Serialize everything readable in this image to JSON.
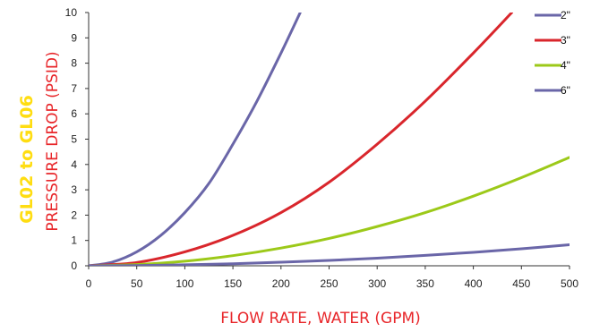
{
  "colors": {
    "series_2in": "#6a66a8",
    "series_3in": "#d9262c",
    "series_4in": "#9cc919",
    "series_6in": "#6a66a8",
    "axis_title": "#e8262a",
    "side_title": "#ffdd11"
  },
  "labels": {
    "side_title": "GL02 to GL06",
    "y_title": "PRESSURE DROP (PSID)",
    "x_title": "FLOW RATE, WATER (GPM)"
  },
  "chart_data": {
    "type": "line",
    "xlabel": "FLOW RATE, WATER (GPM)",
    "ylabel": "PRESSURE DROP (PSID)",
    "xlim": [
      0,
      500
    ],
    "ylim": [
      0,
      10
    ],
    "x_ticks": [
      "0",
      "50",
      "100",
      "150",
      "200",
      "250",
      "300",
      "350",
      "400",
      "450",
      "500"
    ],
    "y_ticks": [
      "0",
      "1",
      "2",
      "3",
      "4",
      "5",
      "6",
      "7",
      "8",
      "9",
      "10"
    ],
    "grid": false,
    "legend_position": "top-right",
    "series": [
      {
        "name": "2\"",
        "color": "#6a66a8",
        "x": [
          0,
          25,
          50,
          75,
          100,
          125,
          150,
          175,
          200,
          220
        ],
        "y": [
          0,
          0.15,
          0.55,
          1.2,
          2.1,
          3.25,
          4.8,
          6.5,
          8.4,
          10.0
        ]
      },
      {
        "name": "3\"",
        "color": "#d9262c",
        "x": [
          0,
          50,
          100,
          150,
          200,
          250,
          300,
          350,
          400,
          440
        ],
        "y": [
          0,
          0.13,
          0.55,
          1.2,
          2.1,
          3.3,
          4.8,
          6.5,
          8.4,
          10.0
        ]
      },
      {
        "name": "4\"",
        "color": "#9cc919",
        "x": [
          0,
          50,
          100,
          150,
          200,
          250,
          300,
          350,
          400,
          450,
          500
        ],
        "y": [
          0,
          0.05,
          0.18,
          0.4,
          0.7,
          1.08,
          1.55,
          2.1,
          2.75,
          3.48,
          4.28
        ]
      },
      {
        "name": "6\"",
        "color": "#6a66a8",
        "x": [
          0,
          50,
          100,
          150,
          200,
          250,
          300,
          350,
          400,
          450,
          500
        ],
        "y": [
          0,
          0.01,
          0.04,
          0.08,
          0.14,
          0.21,
          0.3,
          0.41,
          0.53,
          0.67,
          0.83
        ]
      }
    ]
  }
}
